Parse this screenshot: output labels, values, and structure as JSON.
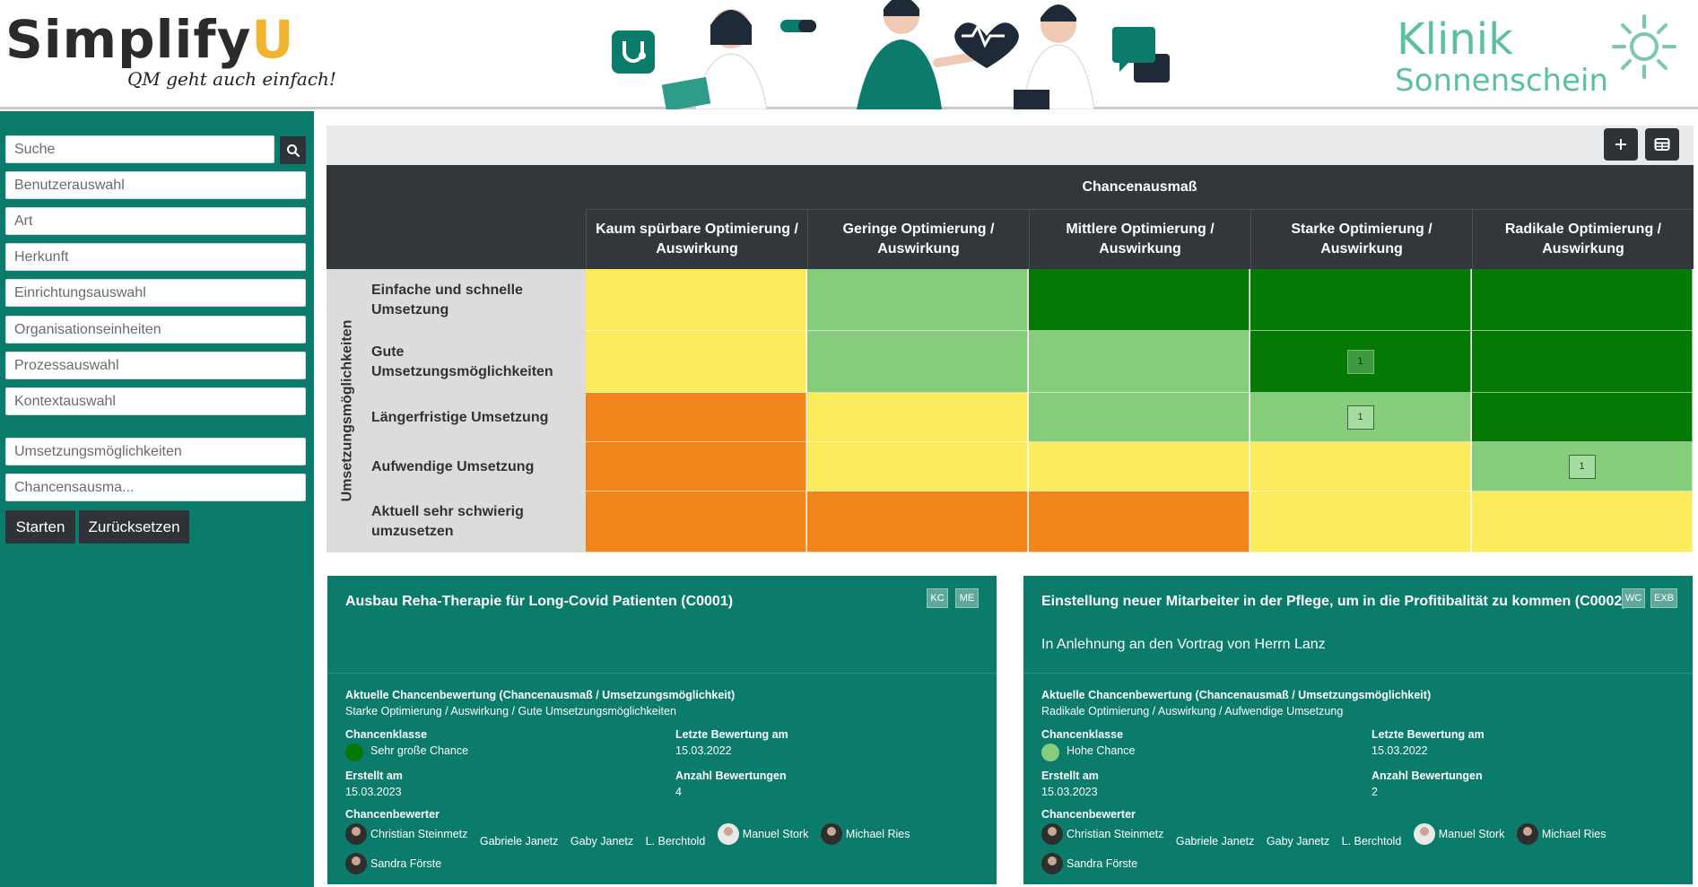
{
  "header": {
    "brand_name_main": "Simplify",
    "brand_name_accent": "U",
    "brand_tagline": "QM geht auch einfach!",
    "clinic_line1": "Klinik",
    "clinic_line2": "Sonnenschein"
  },
  "sidebar": {
    "search_placeholder": "Suche",
    "filters": [
      "Benutzerauswahl",
      "Art",
      "Herkunft",
      "Einrichtungsauswahl",
      "Organisationseinheiten",
      "Prozessauswahl",
      "Kontextauswahl"
    ],
    "filters2": [
      "Umsetzungsmöglichkeiten",
      "Chancensausma..."
    ],
    "start_label": "Starten",
    "reset_label": "Zurücksetzen"
  },
  "matrix": {
    "column_group_title": "Chancenausmaß",
    "row_group_title": "Umsetzungsmöglichkeiten",
    "columns": [
      "Kaum spürbare Optimierung / Auswirkung",
      "Geringe Optimierung / Auswirkung",
      "Mittlere Optimierung / Auswirkung",
      "Starke Optimierung / Auswirkung",
      "Radikale Optimierung / Auswirkung"
    ],
    "rows": [
      "Einfache und schnelle Umsetzung",
      "Gute Umsetzungsmöglichkeiten",
      "Längerfristige Umsetzung",
      "Aufwendige Umsetzung",
      "Aktuell sehr schwierig umzusetzen"
    ],
    "colors": {
      "yellow": "#fceb5a",
      "light_green": "#86cd7b",
      "dark_green": "#047a04",
      "orange": "#f2841c"
    },
    "cell_colors": [
      [
        "yellow",
        "light_green",
        "dark_green",
        "dark_green",
        "dark_green"
      ],
      [
        "yellow",
        "light_green",
        "light_green",
        "dark_green",
        "dark_green"
      ],
      [
        "orange",
        "yellow",
        "light_green",
        "light_green",
        "dark_green"
      ],
      [
        "orange",
        "yellow",
        "yellow",
        "yellow",
        "light_green"
      ],
      [
        "orange",
        "orange",
        "orange",
        "yellow",
        "yellow"
      ]
    ],
    "counts": {
      "r1c3": "1",
      "r2c3": "1",
      "r3c4": "1"
    }
  },
  "cards": [
    {
      "title": "Ausbau Reha-Therapie für Long-Covid Patienten (C0001)",
      "tags": [
        "KC",
        "ME"
      ],
      "description": "",
      "current_label": "Aktuelle Chancenbewertung (Chancenausmaß / Umsetzungsmöglichkeit)",
      "current_value": "Starke Optimierung / Auswirkung / Gute Umsetzungsmöglichkeiten",
      "class_label": "Chancenklasse",
      "class_value": "Sehr große Chance",
      "class_color": "#047a04",
      "last_label": "Letzte Bewertung am",
      "last_value": "15.03.2022",
      "created_label": "Erstellt am",
      "created_value": "15.03.2023",
      "count_label": "Anzahl Bewertungen",
      "count_value": "4",
      "raters_label": "Chancenbewerter",
      "raters": [
        {
          "name": "Christian Steinmetz",
          "avatar": "dark"
        },
        {
          "name": "Gabriele Janetz",
          "avatar": ""
        },
        {
          "name": "Gaby Janetz",
          "avatar": ""
        },
        {
          "name": "L. Berchtold",
          "avatar": ""
        },
        {
          "name": "Manuel Stork",
          "avatar": "light"
        },
        {
          "name": "Michael Ries",
          "avatar": "dark"
        },
        {
          "name": "Sandra Förste",
          "avatar": "dark"
        }
      ]
    },
    {
      "title": "Einstellung neuer Mitarbeiter in der Pflege, um in die Profitibalität zu kommen (C0002)",
      "tags": [
        "WC",
        "EXB"
      ],
      "description": "In Anlehnung an den Vortrag von Herrn Lanz",
      "current_label": "Aktuelle Chancenbewertung (Chancenausmaß / Umsetzungsmöglichkeit)",
      "current_value": "Radikale Optimierung / Auswirkung / Aufwendige Umsetzung",
      "class_label": "Chancenklasse",
      "class_value": "Hohe Chance",
      "class_color": "#86cd7b",
      "last_label": "Letzte Bewertung am",
      "last_value": "15.03.2022",
      "created_label": "Erstellt am",
      "created_value": "15.03.2023",
      "count_label": "Anzahl Bewertungen",
      "count_value": "2",
      "raters_label": "Chancenbewerter",
      "raters": [
        {
          "name": "Christian Steinmetz",
          "avatar": "dark"
        },
        {
          "name": "Gabriele Janetz",
          "avatar": ""
        },
        {
          "name": "Gaby Janetz",
          "avatar": ""
        },
        {
          "name": "L. Berchtold",
          "avatar": ""
        },
        {
          "name": "Manuel Stork",
          "avatar": "light"
        },
        {
          "name": "Michael Ries",
          "avatar": "dark"
        },
        {
          "name": "Sandra Förste",
          "avatar": "dark"
        }
      ]
    }
  ],
  "icons": {
    "search": "search-icon",
    "add": "plus-icon",
    "table": "table-icon"
  }
}
